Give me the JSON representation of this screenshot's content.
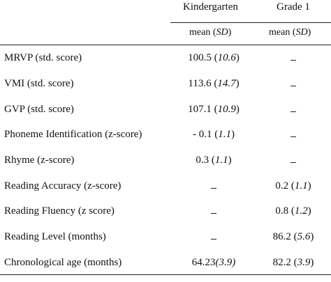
{
  "headers": {
    "kindergarten": "Kindergarten",
    "grade1": "Grade 1"
  },
  "subheaders": {
    "kindergarten_prefix": "mean (",
    "kindergarten_sd": "SD",
    "kindergarten_suffix": ")",
    "grade1_prefix": "mean (",
    "grade1_sd": "SD",
    "grade1_suffix": ")"
  },
  "rows": [
    {
      "label": "MRVP (std. score)",
      "k_main": "100.5 (",
      "k_sd": "10.6",
      "k_tail": ")",
      "g_main": "",
      "g_sd": "",
      "g_tail": ""
    },
    {
      "label": "VMI (std. score)",
      "k_main": "113.6 (",
      "k_sd": "14.7",
      "k_tail": ")",
      "g_main": "",
      "g_sd": "",
      "g_tail": ""
    },
    {
      "label": "GVP (std. score)",
      "k_main": "107.1 (",
      "k_sd": "10.9",
      "k_tail": ")",
      "g_main": "",
      "g_sd": "",
      "g_tail": ""
    },
    {
      "label": "Phoneme Identification (z-score)",
      "k_main": "- 0.1 (",
      "k_sd": "1.1",
      "k_tail": ")",
      "g_main": "",
      "g_sd": "",
      "g_tail": ""
    },
    {
      "label": "Rhyme (z-score)",
      "k_main": "0.3 (",
      "k_sd": "1.1",
      "k_tail": ")",
      "g_main": "",
      "g_sd": "",
      "g_tail": ""
    },
    {
      "label": "Reading Accuracy (z-score)",
      "k_main": "",
      "k_sd": "",
      "k_tail": "",
      "g_main": "0.2 (",
      "g_sd": "1.1",
      "g_tail": ")"
    },
    {
      "label": "Reading Fluency (z score)",
      "k_main": "",
      "k_sd": "",
      "k_tail": "",
      "g_main": "0.8 (",
      "g_sd": "1.2",
      "g_tail": ")"
    },
    {
      "label": "Reading Level (months)",
      "k_main": "",
      "k_sd": "",
      "k_tail": "",
      "g_main": "86.2 (",
      "g_sd": "5.6",
      "g_tail": ")"
    },
    {
      "label": "Chronological age (months)",
      "k_main": "64.23",
      "k_sd": "(3.9)",
      "k_tail": "",
      "g_main": "82.2 (",
      "g_sd": "3.9",
      "g_tail": ")"
    }
  ]
}
